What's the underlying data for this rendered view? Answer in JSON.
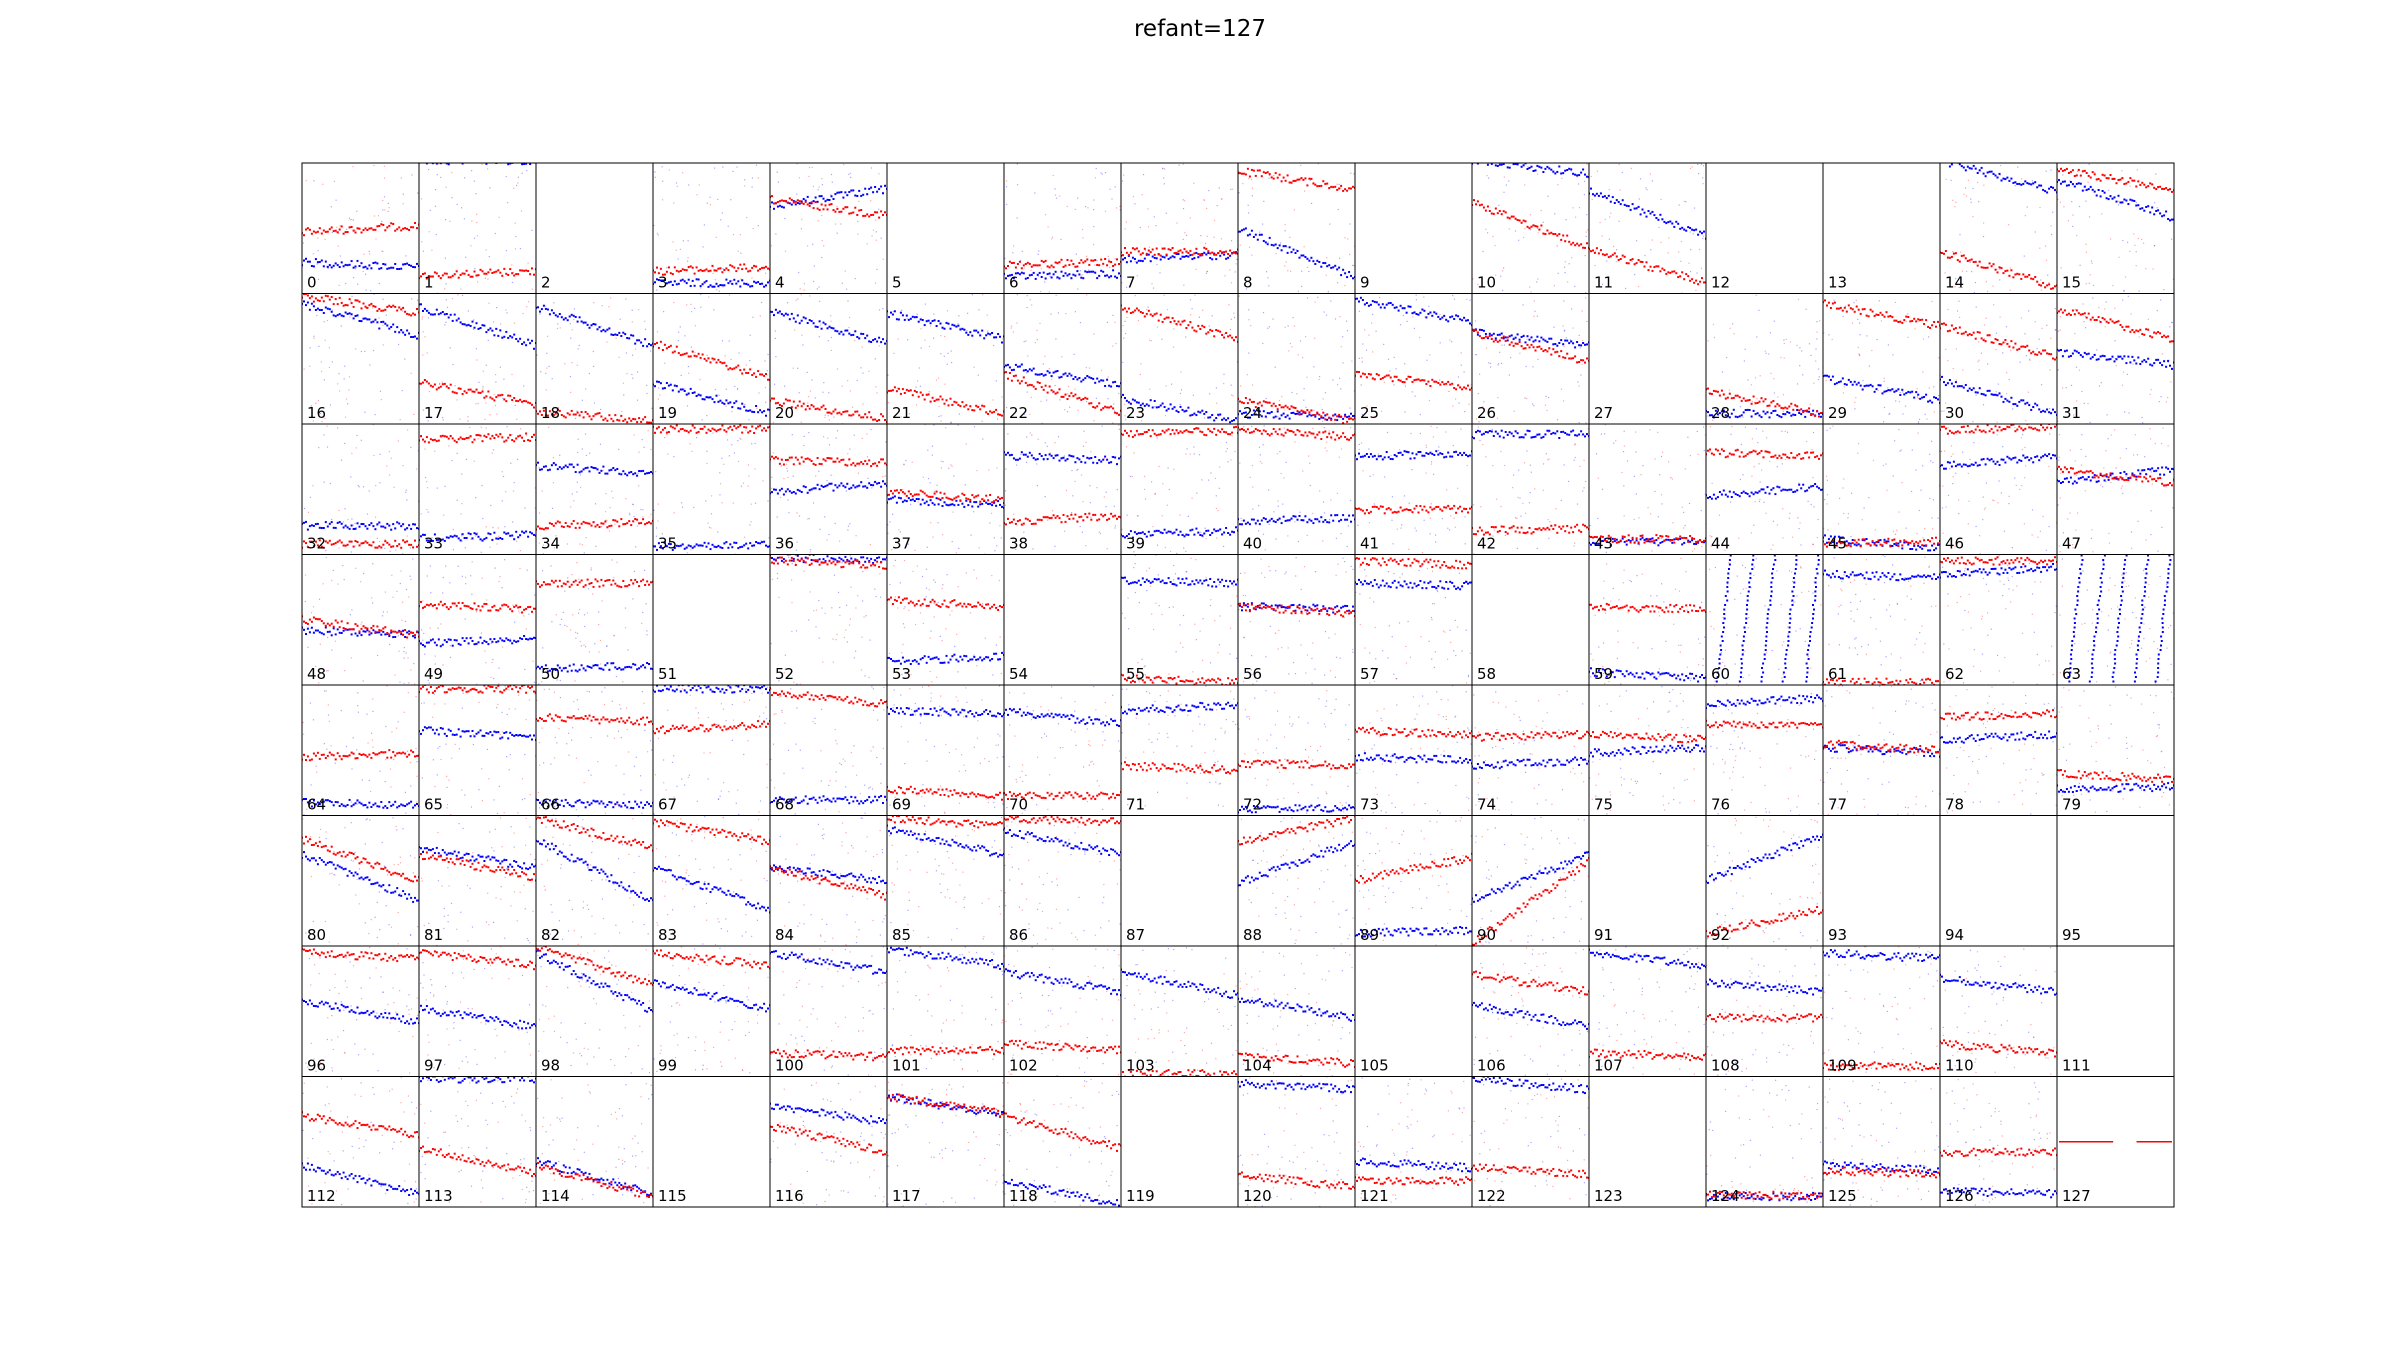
{
  "title": "refant=127",
  "chart_data": {
    "type": "scatter",
    "title": "refant=127",
    "grid": {
      "rows": 8,
      "cols": 16
    },
    "colors": {
      "series_a": "#0000ff",
      "series_b": "#ff0000",
      "frame": "#000000"
    },
    "axes": "hidden",
    "series_names": [],
    "panel_ylim": [
      0,
      1
    ],
    "panel_x_points": 60,
    "panels": [
      {
        "label": "0",
        "blue": [
          0.76,
          0.8
        ],
        "red": [
          0.53,
          0.48
        ]
      },
      {
        "label": "1",
        "blue": [
          -0.02,
          -0.02
        ],
        "red": [
          0.86,
          0.83
        ]
      },
      {
        "label": "2",
        "blue": null,
        "red": null
      },
      {
        "label": "3",
        "blue": [
          0.92,
          0.92
        ],
        "red": [
          0.83,
          0.8
        ]
      },
      {
        "label": "4",
        "blue": [
          0.33,
          0.2
        ],
        "red": [
          0.28,
          0.4
        ]
      },
      {
        "label": "5",
        "blue": null,
        "red": null
      },
      {
        "label": "6",
        "blue": [
          0.87,
          0.85
        ],
        "red": [
          0.78,
          0.76
        ]
      },
      {
        "label": "7",
        "blue": [
          0.74,
          0.7
        ],
        "red": [
          0.68,
          0.68
        ]
      },
      {
        "label": "8",
        "blue": [
          0.5,
          0.88
        ],
        "red": [
          0.06,
          0.2
        ]
      },
      {
        "label": "9",
        "blue": null,
        "red": null
      },
      {
        "label": "10",
        "blue": [
          -0.02,
          0.08
        ],
        "red": [
          0.3,
          0.65
        ]
      },
      {
        "label": "11",
        "blue": [
          0.22,
          0.55
        ],
        "red": [
          0.66,
          0.92
        ]
      },
      {
        "label": "12",
        "blue": null,
        "red": null
      },
      {
        "label": "13",
        "blue": null,
        "red": null
      },
      {
        "label": "14",
        "blue": [
          -0.02,
          0.22
        ],
        "red": [
          0.68,
          0.95
        ]
      },
      {
        "label": "15",
        "blue": [
          0.12,
          0.42
        ],
        "red": [
          0.05,
          0.2
        ]
      },
      {
        "label": "16",
        "blue": [
          0.08,
          0.32
        ],
        "red": [
          0.02,
          0.15
        ]
      },
      {
        "label": "17",
        "blue": [
          0.1,
          0.4
        ],
        "red": [
          0.68,
          0.85
        ]
      },
      {
        "label": "18",
        "blue": [
          0.1,
          0.4
        ],
        "red": [
          0.9,
          0.98
        ]
      },
      {
        "label": "19",
        "blue": [
          0.68,
          0.92
        ],
        "red": [
          0.38,
          0.65
        ]
      },
      {
        "label": "20",
        "blue": [
          0.14,
          0.38
        ],
        "red": [
          0.82,
          0.96
        ]
      },
      {
        "label": "21",
        "blue": [
          0.15,
          0.35
        ],
        "red": [
          0.73,
          0.92
        ]
      },
      {
        "label": "22",
        "blue": [
          0.55,
          0.7
        ],
        "red": [
          0.62,
          0.92
        ]
      },
      {
        "label": "23",
        "blue": [
          0.8,
          0.98
        ],
        "red": [
          0.1,
          0.35
        ]
      },
      {
        "label": "24",
        "blue": [
          0.92,
          0.95
        ],
        "red": [
          0.82,
          0.98
        ]
      },
      {
        "label": "25",
        "blue": [
          0.05,
          0.22
        ],
        "red": [
          0.62,
          0.72
        ]
      },
      {
        "label": "26",
        "blue": [
          0.3,
          0.4
        ],
        "red": [
          0.3,
          0.52
        ]
      },
      {
        "label": "27",
        "blue": null,
        "red": null
      },
      {
        "label": "28",
        "blue": [
          0.92,
          0.92
        ],
        "red": [
          0.75,
          0.92
        ]
      },
      {
        "label": "29",
        "blue": [
          0.65,
          0.82
        ],
        "red": [
          0.08,
          0.25
        ]
      },
      {
        "label": "30",
        "blue": [
          0.66,
          0.92
        ],
        "red": [
          0.25,
          0.48
        ]
      },
      {
        "label": "31",
        "blue": [
          0.45,
          0.55
        ],
        "red": [
          0.12,
          0.35
        ]
      },
      {
        "label": "32",
        "blue": [
          0.78,
          0.78
        ],
        "red": [
          0.92,
          0.92
        ]
      },
      {
        "label": "33",
        "blue": [
          0.88,
          0.85
        ],
        "red": [
          0.12,
          0.1
        ]
      },
      {
        "label": "34",
        "blue": [
          0.32,
          0.38
        ],
        "red": [
          0.78,
          0.75
        ]
      },
      {
        "label": "35",
        "blue": [
          0.94,
          0.92
        ],
        "red": [
          0.04,
          0.04
        ]
      },
      {
        "label": "36",
        "blue": [
          0.52,
          0.45
        ],
        "red": [
          0.28,
          0.3
        ]
      },
      {
        "label": "37",
        "blue": [
          0.58,
          0.62
        ],
        "red": [
          0.52,
          0.58
        ]
      },
      {
        "label": "38",
        "blue": [
          0.24,
          0.28
        ],
        "red": [
          0.75,
          0.7
        ]
      },
      {
        "label": "39",
        "blue": [
          0.85,
          0.82
        ],
        "red": [
          0.08,
          0.05
        ]
      },
      {
        "label": "40",
        "blue": [
          0.75,
          0.72
        ],
        "red": [
          0.05,
          0.1
        ]
      },
      {
        "label": "41",
        "blue": [
          0.25,
          0.22
        ],
        "red": [
          0.66,
          0.65
        ]
      },
      {
        "label": "42",
        "blue": [
          0.08,
          0.08
        ],
        "red": [
          0.82,
          0.8
        ]
      },
      {
        "label": "43",
        "blue": [
          0.9,
          0.9
        ],
        "red": [
          0.88,
          0.88
        ]
      },
      {
        "label": "44",
        "blue": [
          0.55,
          0.48
        ],
        "red": [
          0.22,
          0.25
        ]
      },
      {
        "label": "45",
        "blue": [
          0.88,
          0.95
        ],
        "red": [
          0.92,
          0.9
        ]
      },
      {
        "label": "46",
        "blue": [
          0.32,
          0.25
        ],
        "red": [
          0.05,
          0.02
        ]
      },
      {
        "label": "47",
        "blue": [
          0.45,
          0.35
        ],
        "red": [
          0.35,
          0.45
        ]
      },
      {
        "label": "48",
        "blue": [
          0.58,
          0.62
        ],
        "red": [
          0.5,
          0.62
        ]
      },
      {
        "label": "49",
        "blue": [
          0.68,
          0.65
        ],
        "red": [
          0.38,
          0.42
        ]
      },
      {
        "label": "50",
        "blue": [
          0.88,
          0.85
        ],
        "red": [
          0.22,
          0.22
        ]
      },
      {
        "label": "51",
        "blue": null,
        "red": null
      },
      {
        "label": "52",
        "blue": [
          0.02,
          0.05
        ],
        "red": [
          0.05,
          0.08
        ]
      },
      {
        "label": "53",
        "blue": [
          0.82,
          0.78
        ],
        "red": [
          0.35,
          0.4
        ]
      },
      {
        "label": "54",
        "blue": null,
        "red": null
      },
      {
        "label": "55",
        "blue": [
          0.2,
          0.22
        ],
        "red": [
          0.95,
          0.98
        ]
      },
      {
        "label": "56",
        "blue": [
          0.4,
          0.42
        ],
        "red": [
          0.4,
          0.45
        ]
      },
      {
        "label": "57",
        "blue": [
          0.22,
          0.24
        ],
        "red": [
          0.05,
          0.08
        ]
      },
      {
        "label": "58",
        "blue": null,
        "red": null
      },
      {
        "label": "59",
        "blue": [
          0.9,
          0.95
        ],
        "red": [
          0.4,
          0.42
        ]
      },
      {
        "label": "60",
        "blue": null,
        "red": null,
        "streaks": true
      },
      {
        "label": "61",
        "blue": [
          0.15,
          0.18
        ],
        "red": [
          0.98,
          0.98
        ]
      },
      {
        "label": "62",
        "blue": [
          0.15,
          0.1
        ],
        "red": [
          0.05,
          0.05
        ]
      },
      {
        "label": "63",
        "blue": null,
        "red": null,
        "streaks": true
      },
      {
        "label": "64",
        "blue": [
          0.9,
          0.92
        ],
        "red": [
          0.55,
          0.52
        ]
      },
      {
        "label": "65",
        "blue": [
          0.35,
          0.4
        ],
        "red": [
          0.03,
          0.03
        ]
      },
      {
        "label": "66",
        "blue": [
          0.9,
          0.92
        ],
        "red": [
          0.25,
          0.28
        ]
      },
      {
        "label": "67",
        "blue": [
          0.03,
          0.03
        ],
        "red": [
          0.35,
          0.3
        ]
      },
      {
        "label": "68",
        "blue": [
          0.88,
          0.88
        ],
        "red": [
          0.05,
          0.15
        ]
      },
      {
        "label": "69",
        "blue": [
          0.2,
          0.22
        ],
        "red": [
          0.8,
          0.85
        ]
      },
      {
        "label": "70",
        "blue": [
          0.2,
          0.3
        ],
        "red": [
          0.85,
          0.85
        ]
      },
      {
        "label": "71",
        "blue": [
          0.2,
          0.15
        ],
        "red": [
          0.62,
          0.65
        ]
      },
      {
        "label": "72",
        "blue": [
          0.95,
          0.95
        ],
        "red": [
          0.6,
          0.62
        ]
      },
      {
        "label": "73",
        "blue": [
          0.55,
          0.58
        ],
        "red": [
          0.35,
          0.38
        ]
      },
      {
        "label": "74",
        "blue": [
          0.62,
          0.58
        ],
        "red": [
          0.4,
          0.38
        ]
      },
      {
        "label": "75",
        "blue": [
          0.52,
          0.48
        ],
        "red": [
          0.38,
          0.42
        ]
      },
      {
        "label": "76",
        "blue": [
          0.15,
          0.1
        ],
        "red": [
          0.3,
          0.3
        ]
      },
      {
        "label": "77",
        "blue": [
          0.48,
          0.52
        ],
        "red": [
          0.45,
          0.5
        ]
      },
      {
        "label": "78",
        "blue": [
          0.42,
          0.38
        ],
        "red": [
          0.25,
          0.22
        ]
      },
      {
        "label": "79",
        "blue": [
          0.8,
          0.78
        ],
        "red": [
          0.68,
          0.72
        ]
      },
      {
        "label": "80",
        "blue": [
          0.3,
          0.65
        ],
        "red": [
          0.18,
          0.5
        ]
      },
      {
        "label": "81",
        "blue": [
          0.25,
          0.4
        ],
        "red": [
          0.3,
          0.48
        ]
      },
      {
        "label": "82",
        "blue": [
          0.18,
          0.65
        ],
        "red": [
          0.02,
          0.25
        ]
      },
      {
        "label": "83",
        "blue": [
          0.4,
          0.72
        ],
        "red": [
          0.05,
          0.2
        ]
      },
      {
        "label": "84",
        "blue": [
          0.4,
          0.5
        ],
        "red": [
          0.4,
          0.62
        ]
      },
      {
        "label": "85",
        "blue": [
          0.1,
          0.3
        ],
        "red": [
          0.02,
          0.08
        ]
      },
      {
        "label": "86",
        "blue": [
          0.12,
          0.3
        ],
        "red": [
          0.02,
          0.05
        ]
      },
      {
        "label": "87",
        "blue": null,
        "red": null
      },
      {
        "label": "88",
        "blue": [
          0.52,
          0.2
        ],
        "red": [
          0.2,
          0.02
        ]
      },
      {
        "label": "89",
        "blue": [
          0.9,
          0.88
        ],
        "red": [
          0.5,
          0.32
        ]
      },
      {
        "label": "90",
        "blue": [
          0.65,
          0.3
        ],
        "red": [
          0.98,
          0.35
        ]
      },
      {
        "label": "91",
        "blue": null,
        "red": null
      },
      {
        "label": "92",
        "blue": [
          0.5,
          0.15
        ],
        "red": [
          0.9,
          0.72
        ]
      },
      {
        "label": "93",
        "blue": null,
        "red": null
      },
      {
        "label": "94",
        "blue": null,
        "red": null
      },
      {
        "label": "95",
        "blue": null,
        "red": null
      },
      {
        "label": "96",
        "blue": [
          0.42,
          0.58
        ],
        "red": [
          0.05,
          0.1
        ]
      },
      {
        "label": "97",
        "blue": [
          0.48,
          0.62
        ],
        "red": [
          0.05,
          0.15
        ]
      },
      {
        "label": "98",
        "blue": [
          0.05,
          0.5
        ],
        "red": [
          0.0,
          0.3
        ]
      },
      {
        "label": "99",
        "blue": [
          0.28,
          0.48
        ],
        "red": [
          0.05,
          0.15
        ]
      },
      {
        "label": "100",
        "blue": [
          0.05,
          0.2
        ],
        "red": [
          0.82,
          0.85
        ]
      },
      {
        "label": "101",
        "blue": [
          0.02,
          0.15
        ],
        "red": [
          0.8,
          0.8
        ]
      },
      {
        "label": "102",
        "blue": [
          0.2,
          0.35
        ],
        "red": [
          0.75,
          0.8
        ]
      },
      {
        "label": "103",
        "blue": [
          0.2,
          0.38
        ],
        "red": [
          0.98,
          0.98
        ]
      },
      {
        "label": "104",
        "blue": [
          0.4,
          0.55
        ],
        "red": [
          0.85,
          0.9
        ]
      },
      {
        "label": "105",
        "blue": null,
        "red": null
      },
      {
        "label": "106",
        "blue": [
          0.45,
          0.62
        ],
        "red": [
          0.22,
          0.35
        ]
      },
      {
        "label": "107",
        "blue": [
          0.05,
          0.15
        ],
        "red": [
          0.82,
          0.85
        ]
      },
      {
        "label": "108",
        "blue": [
          0.28,
          0.35
        ],
        "red": [
          0.55,
          0.55
        ]
      },
      {
        "label": "109",
        "blue": [
          0.05,
          0.1
        ],
        "red": [
          0.92,
          0.92
        ]
      },
      {
        "label": "110",
        "blue": [
          0.25,
          0.35
        ],
        "red": [
          0.75,
          0.82
        ]
      },
      {
        "label": "111",
        "blue": null,
        "red": null
      },
      {
        "label": "112",
        "blue": [
          0.68,
          0.9
        ],
        "red": [
          0.3,
          0.45
        ]
      },
      {
        "label": "113",
        "blue": [
          0.02,
          0.02
        ],
        "red": [
          0.55,
          0.75
        ]
      },
      {
        "label": "114",
        "blue": [
          0.65,
          0.9
        ],
        "red": [
          0.68,
          0.92
        ]
      },
      {
        "label": "115",
        "blue": null,
        "red": null
      },
      {
        "label": "116",
        "blue": [
          0.22,
          0.35
        ],
        "red": [
          0.38,
          0.58
        ]
      },
      {
        "label": "117",
        "blue": [
          0.15,
          0.3
        ],
        "red": [
          0.15,
          0.28
        ]
      },
      {
        "label": "118",
        "blue": [
          0.8,
          0.98
        ],
        "red": [
          0.3,
          0.55
        ]
      },
      {
        "label": "119",
        "blue": null,
        "red": null
      },
      {
        "label": "120",
        "blue": [
          0.05,
          0.1
        ],
        "red": [
          0.75,
          0.85
        ]
      },
      {
        "label": "121",
        "blue": [
          0.65,
          0.7
        ],
        "red": [
          0.8,
          0.8
        ]
      },
      {
        "label": "122",
        "blue": [
          0.02,
          0.1
        ],
        "red": [
          0.7,
          0.75
        ]
      },
      {
        "label": "123",
        "blue": null,
        "red": null
      },
      {
        "label": "124",
        "blue": [
          0.92,
          0.92
        ],
        "red": [
          0.9,
          0.92
        ]
      },
      {
        "label": "125",
        "blue": [
          0.68,
          0.72
        ],
        "red": [
          0.72,
          0.75
        ]
      },
      {
        "label": "126",
        "blue": [
          0.88,
          0.9
        ],
        "red": [
          0.58,
          0.58
        ]
      },
      {
        "label": "127",
        "blue": null,
        "red": [
          0.5,
          0.5
        ],
        "flat_red": true
      }
    ]
  }
}
